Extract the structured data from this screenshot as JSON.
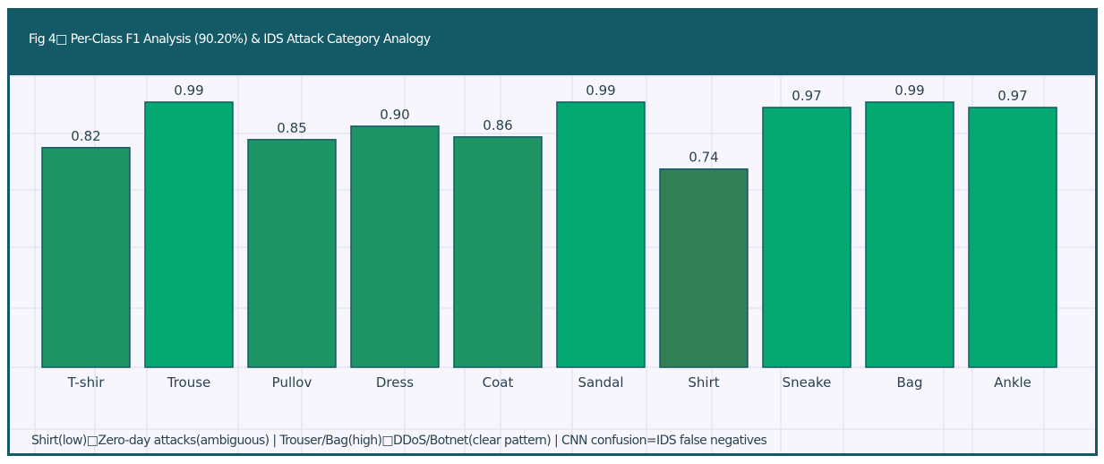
{
  "colors": {
    "header": "#145a66",
    "panel": "#f6f6fc",
    "grid": "#dddff0",
    "bar_stroke": "#145a66",
    "bar_high": "#06a872",
    "bar_mid": "#1f9465",
    "bar_low": "#327f55",
    "text": "#2a4350"
  },
  "header": {
    "title": "Fig 4□ Per-Class F1 Analysis (90.20%) & IDS Attack Category Analogy"
  },
  "footnote": "Shirt(low)□Zero-day attacks(ambiguous) | Trouser/Bag(high)□DDoS/Botnet(clear pattern) | CNN confusion=IDS false negatives",
  "chart_data": {
    "type": "bar",
    "title": "Fig 4□ Per-Class F1 Analysis (90.20%) & IDS Attack Category Analogy",
    "categories": [
      "T-shir",
      "Trouse",
      "Pullov",
      "Dress",
      "Coat",
      "Sandal",
      "Shirt",
      "Sneake",
      "Bag",
      "Ankle"
    ],
    "values": [
      0.82,
      0.99,
      0.85,
      0.9,
      0.86,
      0.99,
      0.74,
      0.97,
      0.99,
      0.97
    ],
    "value_labels": [
      "0.82",
      "0.99",
      "0.85",
      "0.90",
      "0.86",
      "0.99",
      "0.74",
      "0.97",
      "0.99",
      "0.97"
    ],
    "xlabel": "",
    "ylabel": "",
    "ylim": [
      0,
      1.0
    ],
    "grid": true,
    "legend": "none"
  }
}
